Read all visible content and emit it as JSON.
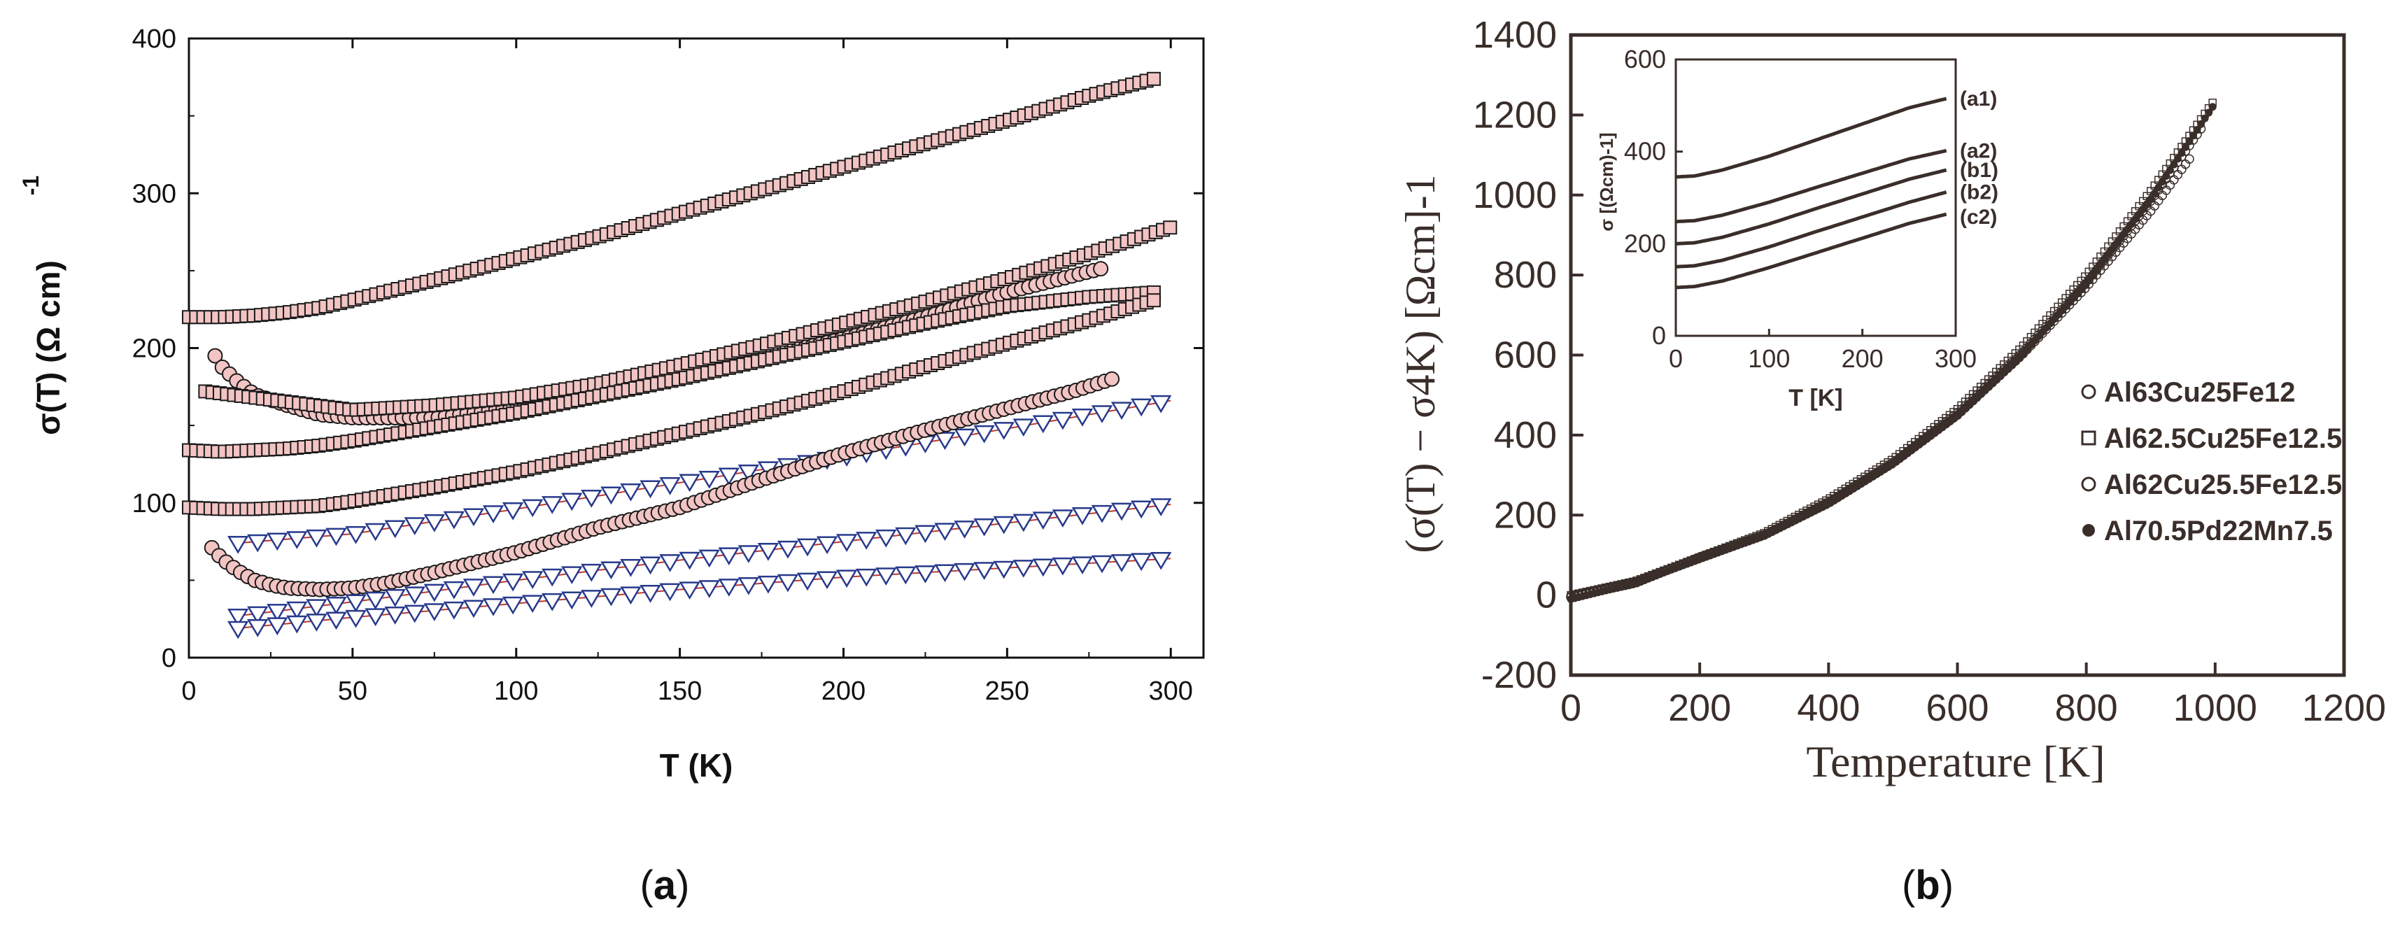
{
  "figure": {
    "panel_a_label": "a",
    "panel_b_label": "b"
  },
  "chart_data": [
    {
      "id": "a",
      "type": "scatter",
      "xlabel": "T (K)",
      "ylabel": "σ(T) (Ω cm)",
      "ylabel_sup": "-1",
      "xlim": [
        0,
        310
      ],
      "ylim": [
        0,
        400
      ],
      "xticks": [
        0,
        50,
        100,
        150,
        200,
        250,
        300
      ],
      "yticks": [
        0,
        100,
        200,
        300,
        400
      ],
      "grid": false,
      "colors": {
        "marker_fill": "#f2c4c4",
        "marker_stroke": "#1a1a1a",
        "fit_line": "#c0392b",
        "triangle_stroke": "#283a8c",
        "triangle_fill": "#ffffff"
      },
      "series": [
        {
          "name": "squares-1",
          "marker": "square",
          "x": [
            0,
            10,
            20,
            30,
            40,
            50,
            75,
            100,
            125,
            150,
            175,
            200,
            225,
            250,
            275,
            295
          ],
          "values": [
            220,
            220,
            221,
            223,
            226,
            231,
            244,
            258,
            272,
            287,
            302,
            317,
            332,
            347,
            363,
            374
          ]
        },
        {
          "name": "circles-1",
          "marker": "circle",
          "x": [
            8,
            10,
            15,
            20,
            30,
            40,
            50,
            75,
            100,
            125,
            150,
            175,
            200,
            225,
            250,
            280
          ],
          "values": [
            195,
            188,
            178,
            170,
            163,
            157,
            155,
            155,
            162,
            172,
            183,
            194,
            206,
            220,
            236,
            252
          ]
        },
        {
          "name": "squares-2",
          "marker": "square",
          "x": [
            5,
            50,
            75,
            100,
            125,
            150,
            175,
            200,
            225,
            250,
            275,
            300
          ],
          "values": [
            172,
            160,
            163,
            168,
            177,
            189,
            202,
            216,
            230,
            245,
            261,
            278
          ]
        },
        {
          "name": "squares-3",
          "marker": "square",
          "x": [
            0,
            10,
            20,
            30,
            40,
            50,
            75,
            100,
            125,
            150,
            175,
            200,
            225,
            250,
            275,
            295
          ],
          "values": [
            134,
            133,
            134,
            135,
            137,
            140,
            149,
            158,
            169,
            180,
            192,
            204,
            216,
            227,
            233,
            236
          ]
        },
        {
          "name": "squares-4",
          "marker": "square",
          "x": [
            0,
            10,
            20,
            30,
            40,
            50,
            75,
            100,
            125,
            150,
            175,
            200,
            225,
            250,
            275,
            295
          ],
          "values": [
            97,
            96,
            96,
            97,
            98,
            101,
            110,
            120,
            132,
            145,
            158,
            172,
            188,
            203,
            218,
            231
          ]
        },
        {
          "name": "triangles-1",
          "marker": "triangle",
          "x": [
            15,
            50,
            100,
            150,
            200,
            250,
            300
          ],
          "values": [
            74,
            80,
            96,
            113,
            130,
            148,
            166
          ]
        },
        {
          "name": "circles-2",
          "marker": "circle",
          "x": [
            7,
            10,
            15,
            20,
            25,
            30,
            40,
            50,
            60,
            75,
            100,
            125,
            150,
            175,
            200,
            225,
            250,
            270,
            282
          ],
          "values": [
            71,
            64,
            56,
            50,
            47,
            45,
            44,
            45,
            48,
            55,
            68,
            84,
            97,
            115,
            132,
            147,
            161,
            172,
            180
          ]
        },
        {
          "name": "triangles-2",
          "marker": "triangle",
          "x": [
            15,
            50,
            100,
            150,
            200,
            250,
            300
          ],
          "values": [
            27,
            36,
            50,
            63,
            75,
            87,
            99
          ]
        },
        {
          "name": "triangles-3",
          "marker": "triangle",
          "x": [
            15,
            50,
            100,
            150,
            200,
            250,
            300
          ],
          "values": [
            19,
            26,
            35,
            44,
            52,
            58,
            64
          ]
        }
      ]
    },
    {
      "id": "b",
      "type": "scatter",
      "xlabel": "Temperature [K]",
      "ylabel": "(σ(T) − σ4K) [Ωcm]-1",
      "xlim": [
        0,
        1200
      ],
      "ylim": [
        -200,
        1400
      ],
      "xticks": [
        0,
        200,
        400,
        600,
        800,
        1000,
        1200
      ],
      "yticks": [
        -200,
        0,
        200,
        400,
        600,
        800,
        1000,
        1200,
        1400
      ],
      "grid": false,
      "colors": {
        "ink": "#3a2e2a"
      },
      "legend": {
        "placement": "right",
        "entries": [
          {
            "marker": "open-circle",
            "label": "Al63Cu25Fe12"
          },
          {
            "marker": "open-square",
            "label": "Al62.5Cu25Fe12.5"
          },
          {
            "marker": "open-circle",
            "label": "Al62Cu25.5Fe12.5"
          },
          {
            "marker": "filled-circle",
            "label": "Al70.5Pd22Mn7.5"
          }
        ]
      },
      "series": [
        {
          "name": "Al63Cu25Fe12",
          "x": [
            0,
            100,
            200,
            300,
            400,
            500,
            600,
            700,
            800,
            900,
            960
          ],
          "values": [
            -5,
            30,
            95,
            150,
            230,
            330,
            450,
            600,
            770,
            960,
            1090
          ]
        },
        {
          "name": "Al62.5Cu25Fe12.5",
          "x": [
            0,
            100,
            200,
            300,
            400,
            500,
            600,
            700,
            800,
            900,
            1000
          ],
          "values": [
            0,
            35,
            95,
            155,
            240,
            340,
            465,
            620,
            800,
            1010,
            1240
          ]
        },
        {
          "name": "Al62Cu25.5Fe12.5",
          "x": [
            0,
            100,
            200,
            300,
            400,
            500,
            600,
            700,
            800,
            900,
            980
          ],
          "values": [
            -3,
            33,
            92,
            150,
            232,
            330,
            455,
            605,
            780,
            985,
            1170
          ]
        },
        {
          "name": "Al70.5Pd22Mn7.5",
          "x": [
            0,
            100,
            200,
            300,
            400,
            500,
            600,
            700,
            800,
            900,
            1000
          ],
          "values": [
            -10,
            30,
            90,
            150,
            230,
            330,
            450,
            600,
            780,
            990,
            1230
          ]
        }
      ],
      "inset": {
        "xlabel": "T [K]",
        "ylabel": "σ [(Ωcm)-1]",
        "xlim": [
          0,
          300
        ],
        "ylim": [
          0,
          600
        ],
        "xticks": [
          0,
          100,
          200,
          300
        ],
        "yticks": [
          0,
          200,
          400,
          600
        ],
        "series": [
          {
            "name": "(a1)",
            "x": [
              0,
              20,
              50,
              100,
              150,
              200,
              250,
              290
            ],
            "values": [
              345,
              347,
              360,
              390,
              425,
              460,
              495,
              515
            ]
          },
          {
            "name": "(a2)",
            "x": [
              0,
              20,
              50,
              100,
              150,
              200,
              250,
              290
            ],
            "values": [
              248,
              250,
              262,
              290,
              322,
              353,
              384,
              402
            ]
          },
          {
            "name": "(b1)",
            "x": [
              0,
              20,
              50,
              100,
              150,
              200,
              250,
              290
            ],
            "values": [
              200,
              202,
              214,
              243,
              276,
              308,
              340,
              360
            ]
          },
          {
            "name": "(b2)",
            "x": [
              0,
              20,
              50,
              100,
              150,
              200,
              250,
              290
            ],
            "values": [
              150,
              152,
              164,
              193,
              226,
              258,
              290,
              312
            ]
          },
          {
            "name": "(c2)",
            "x": [
              0,
              20,
              50,
              100,
              150,
              200,
              250,
              290
            ],
            "values": [
              105,
              107,
              119,
              148,
              180,
              212,
              244,
              264
            ]
          }
        ]
      }
    }
  ]
}
